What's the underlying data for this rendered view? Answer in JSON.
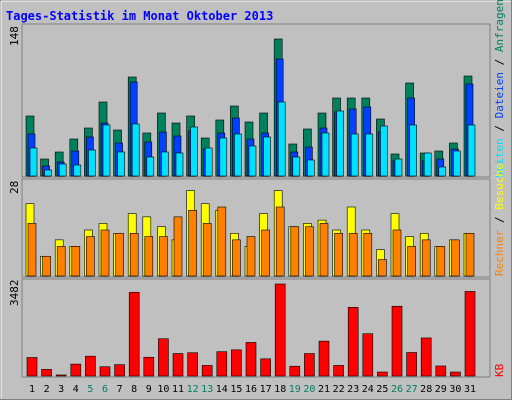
{
  "title": "Tages-Statistik im Monat Oktober 2013",
  "right_labels": {
    "anfragen": "Anfragen",
    "dateien": "Dateien",
    "seiten": "Seiten",
    "besuche": "Besuche",
    "rechner": "Rechner",
    "kb": "KB",
    "sep": " / "
  },
  "colors": {
    "title": "#0000ff",
    "panel_bg": "#c0c0c0",
    "anfragen": "#00805c",
    "dateien": "#0040ff",
    "seiten": "#00e0ff",
    "besuche": "#ffff00",
    "rechner": "#ff8000",
    "kb": "#ff0000",
    "weekend_day": "#00805c",
    "weekday": "#000000"
  },
  "chart_data": [
    {
      "type": "bar",
      "title": "",
      "axis_max_label": "148",
      "ylim": [
        0,
        148
      ],
      "categories": [
        "1",
        "2",
        "3",
        "4",
        "5",
        "6",
        "7",
        "8",
        "9",
        "10",
        "11",
        "12",
        "13",
        "14",
        "15",
        "16",
        "17",
        "18",
        "19",
        "20",
        "21",
        "22",
        "23",
        "24",
        "25",
        "26",
        "27",
        "28",
        "29",
        "30",
        "31"
      ],
      "series": [
        {
          "name": "Anfragen",
          "values": [
            60,
            17,
            24,
            37,
            48,
            74,
            46,
            99,
            43,
            63,
            53,
            60,
            38,
            56,
            70,
            54,
            63,
            137,
            32,
            47,
            63,
            78,
            78,
            78,
            57,
            22,
            93,
            23,
            25,
            33,
            100
          ]
        },
        {
          "name": "Dateien",
          "values": [
            42,
            10,
            14,
            25,
            39,
            53,
            33,
            94,
            34,
            44,
            40,
            45,
            27,
            43,
            58,
            37,
            43,
            117,
            24,
            29,
            48,
            64,
            67,
            69,
            44,
            15,
            78,
            15,
            17,
            27,
            92
          ]
        },
        {
          "name": "Seiten",
          "values": [
            28,
            6,
            12,
            11,
            26,
            51,
            24,
            52,
            19,
            24,
            23,
            49,
            28,
            38,
            42,
            30,
            39,
            74,
            19,
            16,
            43,
            65,
            42,
            42,
            50,
            17,
            51,
            23,
            9,
            25,
            51
          ]
        }
      ]
    },
    {
      "type": "bar",
      "title": "",
      "axis_max_label": "28",
      "ylim": [
        0,
        28
      ],
      "categories": [
        "1",
        "2",
        "3",
        "4",
        "5",
        "6",
        "7",
        "8",
        "9",
        "10",
        "11",
        "12",
        "13",
        "14",
        "15",
        "16",
        "17",
        "18",
        "19",
        "20",
        "21",
        "22",
        "23",
        "24",
        "25",
        "26",
        "27",
        "28",
        "29",
        "30",
        "31"
      ],
      "series": [
        {
          "name": "Besuche",
          "values": [
            22,
            6,
            11,
            9,
            14,
            16,
            13,
            19,
            18,
            15,
            11,
            26,
            22,
            20,
            13,
            9,
            19,
            26,
            15,
            16,
            17,
            14,
            21,
            14,
            8,
            19,
            12,
            13,
            9,
            11,
            13
          ]
        },
        {
          "name": "Rechner",
          "values": [
            16,
            6,
            9,
            9,
            12,
            14,
            13,
            13,
            12,
            12,
            18,
            20,
            16,
            21,
            11,
            12,
            14,
            21,
            15,
            15,
            16,
            13,
            13,
            13,
            5,
            14,
            9,
            11,
            9,
            11,
            13
          ]
        }
      ]
    },
    {
      "type": "bar",
      "title": "",
      "axis_max_label": "3482",
      "ylim": [
        0,
        3482
      ],
      "categories": [
        "1",
        "2",
        "3",
        "4",
        "5",
        "6",
        "7",
        "8",
        "9",
        "10",
        "11",
        "12",
        "13",
        "14",
        "15",
        "16",
        "17",
        "18",
        "19",
        "20",
        "21",
        "22",
        "23",
        "24",
        "25",
        "26",
        "27",
        "28",
        "29",
        "30",
        "31"
      ],
      "series": [
        {
          "name": "KB",
          "values": [
            700,
            250,
            40,
            450,
            750,
            350,
            430,
            3170,
            710,
            1410,
            850,
            880,
            400,
            920,
            990,
            1270,
            650,
            3482,
            370,
            850,
            1320,
            400,
            2600,
            1600,
            150,
            2640,
            890,
            1440,
            380,
            150,
            3200
          ]
        }
      ]
    }
  ]
}
